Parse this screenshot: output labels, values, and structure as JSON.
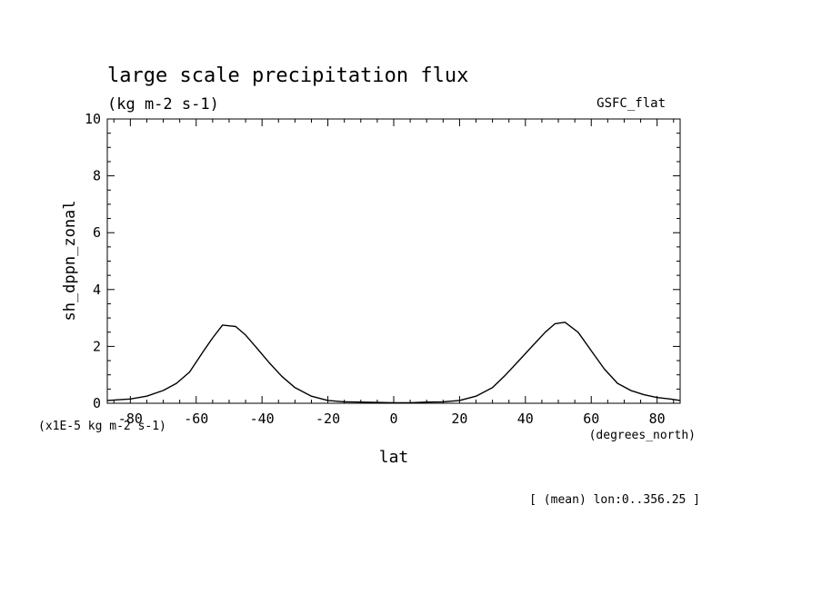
{
  "chart_data": {
    "type": "line",
    "title": "large scale precipitation flux",
    "subtitle": "(kg m-2 s-1)",
    "tag": "GSFC_flat",
    "ylabel": "sh_dppn_zonal",
    "xlabel": "lat",
    "y_unit_label": "(x1E-5 kg m-2 s-1)",
    "x_unit_label": "(degrees_north)",
    "footer": "[ (mean) lon:0..356.25 ]",
    "xlim": [
      -87,
      87
    ],
    "ylim": [
      0,
      10
    ],
    "x_ticks": [
      -80,
      -60,
      -40,
      -20,
      0,
      20,
      40,
      60,
      80
    ],
    "x_tick_labels": [
      "-80",
      "-60",
      "-40",
      "-20",
      "0",
      "20",
      "40",
      "60",
      "80"
    ],
    "y_ticks": [
      0,
      2,
      4,
      6,
      8,
      10
    ],
    "y_tick_labels": [
      "0",
      "2",
      "4",
      "6",
      "8",
      "10"
    ],
    "series": [
      {
        "x": [
          -87,
          -80,
          -75,
          -70,
          -66,
          -62,
          -58,
          -55,
          -52,
          -48,
          -45,
          -42,
          -38,
          -34,
          -30,
          -25,
          -20,
          -15,
          -10,
          -5,
          0,
          5,
          10,
          15,
          20,
          25,
          30,
          34,
          38,
          42,
          46,
          49,
          52,
          56,
          60,
          64,
          68,
          72,
          76,
          80,
          84,
          87
        ],
        "y": [
          0.1,
          0.15,
          0.25,
          0.45,
          0.7,
          1.1,
          1.8,
          2.3,
          2.75,
          2.7,
          2.4,
          2.0,
          1.45,
          0.95,
          0.55,
          0.25,
          0.1,
          0.05,
          0.04,
          0.03,
          0.02,
          0.02,
          0.04,
          0.05,
          0.1,
          0.25,
          0.55,
          1.0,
          1.5,
          2.0,
          2.5,
          2.8,
          2.85,
          2.5,
          1.85,
          1.2,
          0.7,
          0.45,
          0.3,
          0.2,
          0.15,
          0.1
        ],
        "color": "#000000"
      }
    ]
  }
}
